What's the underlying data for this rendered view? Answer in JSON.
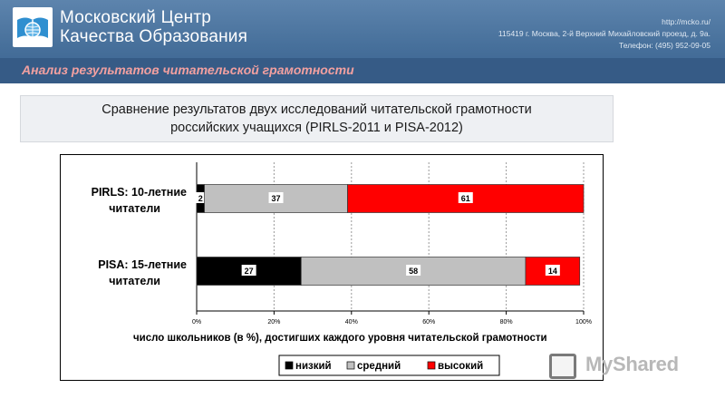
{
  "header": {
    "org_line1": "Московский Центр",
    "org_line2": "Качества Образования",
    "contact_url": "http://mcko.ru/",
    "contact_address": "115419 г. Москва, 2-й Верхний Михайловский проезд, д. 9а.",
    "contact_phone": "Телефон: (495) 952-09-05",
    "section_title": "Анализ результатов читательской грамотности"
  },
  "subtitle": {
    "line1": "Сравнение результатов двух исследований читательской грамотности",
    "line2": "российских учащихся (PIRLS-2011 и PISA-2012)"
  },
  "watermark": {
    "text": "MyShared",
    "icon": "myshared-logo-icon"
  },
  "colors": {
    "header_bg": "#47709b",
    "section_text": "#f2a0a0"
  },
  "chart_data": {
    "type": "bar",
    "orientation": "horizontal",
    "stacked": true,
    "categories": [
      {
        "line1": "PIRLS: 10-летние",
        "line2": "читатели"
      },
      {
        "line1": "PISA: 15-летние",
        "line2": "читатели"
      }
    ],
    "series": [
      {
        "name": "низкий",
        "color": "#000000",
        "values": [
          2,
          27
        ]
      },
      {
        "name": "средний",
        "color": "#c0c0c0",
        "values": [
          37,
          58
        ]
      },
      {
        "name": "высокий",
        "color": "#ff0000",
        "values": [
          61,
          14
        ]
      }
    ],
    "xlim": [
      0,
      100
    ],
    "xticks": [
      "0%",
      "20%",
      "40%",
      "60%",
      "80%",
      "100%"
    ],
    "xlabel": "число школьников (в %), достигших каждого уровня читательской грамотности",
    "grid": true,
    "legend_position": "bottom"
  }
}
